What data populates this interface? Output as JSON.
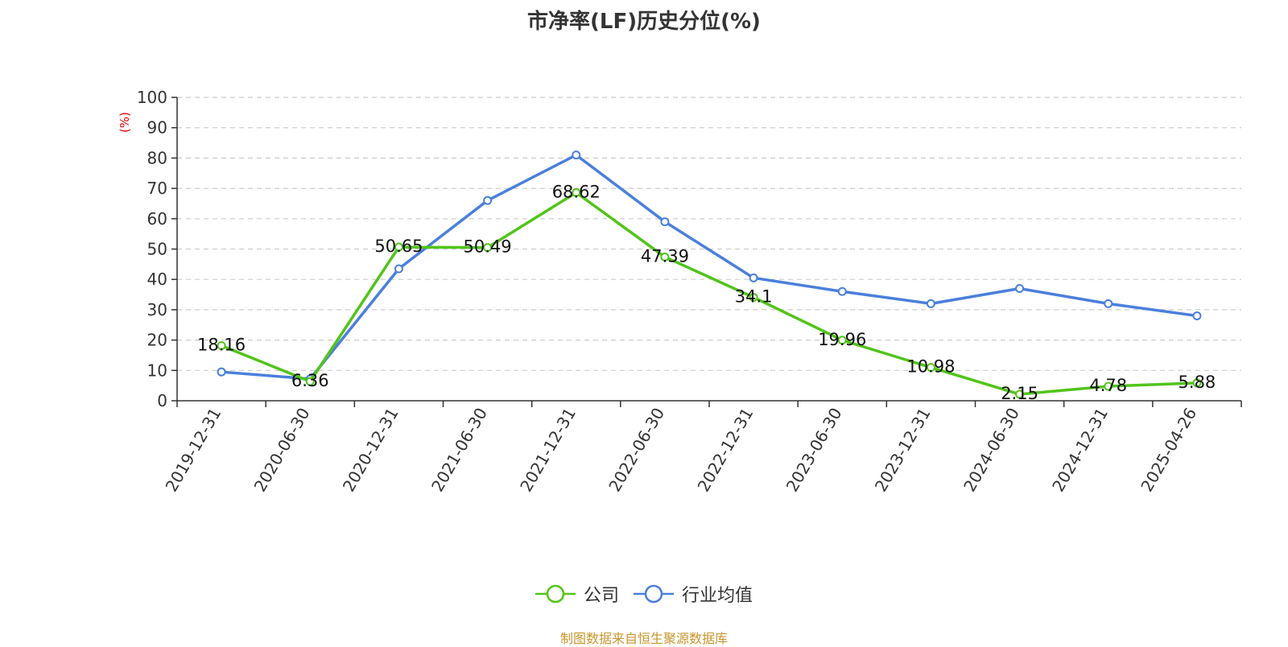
{
  "chart_data": {
    "type": "line",
    "title": "市净率(LF)历史分位(%)",
    "ylabel": "(%)",
    "xlabel": "",
    "ylim": [
      0,
      100
    ],
    "yticks": [
      0,
      10,
      20,
      30,
      40,
      50,
      60,
      70,
      80,
      90,
      100
    ],
    "grid": true,
    "legend_position": "bottom",
    "categories": [
      "2019-12-31",
      "2020-06-30",
      "2020-12-31",
      "2021-06-30",
      "2021-12-31",
      "2022-06-30",
      "2022-12-31",
      "2023-06-30",
      "2023-12-31",
      "2024-06-30",
      "2024-12-31",
      "2025-04-26"
    ],
    "series": [
      {
        "name": "公司",
        "color": "#52c41a",
        "show_labels": true,
        "values": [
          18.16,
          6.36,
          50.65,
          50.49,
          68.62,
          47.39,
          34.1,
          19.96,
          10.98,
          2.15,
          4.78,
          5.88
        ],
        "labels": [
          "18.16",
          "6.36",
          "50.65",
          "50.49",
          "68.62",
          "47.39",
          "34.1",
          "19.96",
          "10.98",
          "2.15",
          "4.78",
          "5.88"
        ]
      },
      {
        "name": "行业均值",
        "color": "#4a7fdc",
        "show_labels": false,
        "values": [
          9.5,
          7.2,
          43.5,
          66.0,
          81.0,
          59.0,
          40.5,
          36.0,
          32.0,
          37.0,
          32.0,
          28.0
        ]
      }
    ]
  },
  "source_note": "制图数据来自恒生聚源数据库"
}
